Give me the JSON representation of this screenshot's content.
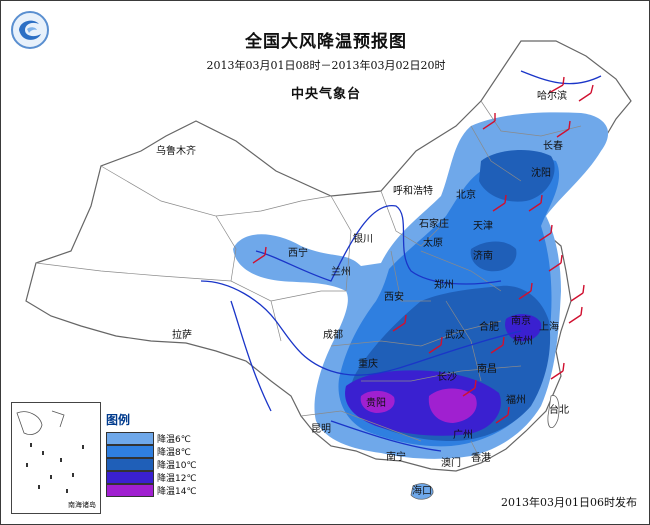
{
  "title": "全国大风降温预报图",
  "period": "2013年03月01日08时－2013年03月02日20时",
  "agency": "中央气象台",
  "publish_time": "2013年03月01日06时发布",
  "inset_caption": "南海诸岛",
  "legend": {
    "title": "图例",
    "items": [
      {
        "label": "降温6℃",
        "color": "#6fa8ea"
      },
      {
        "label": "降温8℃",
        "color": "#2f7fe0"
      },
      {
        "label": "降温10℃",
        "color": "#1f5fb8"
      },
      {
        "label": "降温12℃",
        "color": "#3a20d0"
      },
      {
        "label": "降温14℃",
        "color": "#a020d0"
      }
    ]
  },
  "cities": {
    "urumqi": "乌鲁木齐",
    "harbin": "哈尔滨",
    "changchun": "长春",
    "shenyang": "沈阳",
    "hohhot": "呼和浩特",
    "beijing": "北京",
    "tianjin": "天津",
    "shijiazhuang": "石家庄",
    "yinchuan": "银川",
    "taiyuan": "太原",
    "jinan": "济南",
    "xining": "西宁",
    "lanzhou": "兰州",
    "zhengzhou": "郑州",
    "xian": "西安",
    "hefei": "合肥",
    "nanjing": "南京",
    "shanghai": "上海",
    "lhasa": "拉萨",
    "chengdu": "成都",
    "wuhan": "武汉",
    "hangzhou": "杭州",
    "chongqing": "重庆",
    "changsha": "长沙",
    "nanchang": "南昌",
    "guiyang": "贵阳",
    "fuzhou": "福州",
    "kunming": "昆明",
    "guangzhou": "广州",
    "taipei": "台北",
    "nanning": "南宁",
    "macau": "澳门",
    "hongkong": "香港",
    "haikou": "海口"
  }
}
